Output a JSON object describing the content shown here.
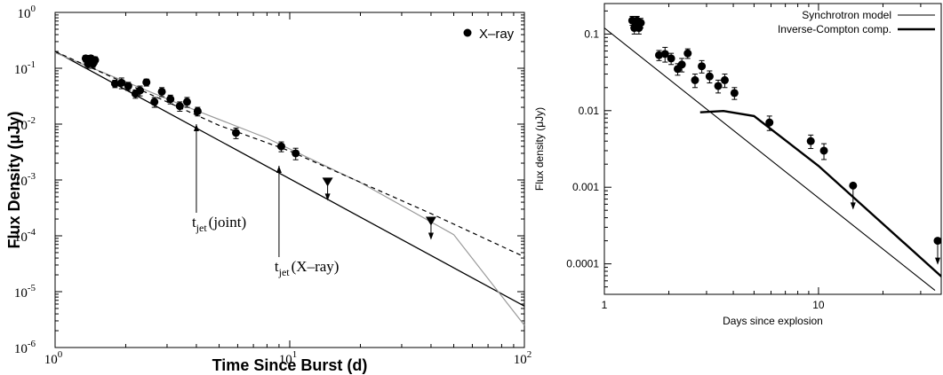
{
  "chart_data": [
    {
      "type": "scatter",
      "xlabel": "Time Since Burst (d)",
      "ylabel": "Flux Density (μJy)",
      "xscale": "log",
      "yscale": "log",
      "xlim": [
        1,
        100
      ],
      "ylim": [
        1e-06,
        1
      ],
      "x_ticks": [
        {
          "v": 1,
          "base": "10",
          "exp": "0"
        },
        {
          "v": 10,
          "base": "10",
          "exp": "1"
        },
        {
          "v": 100,
          "base": "10",
          "exp": "2"
        }
      ],
      "y_ticks": [
        {
          "v": 1,
          "base": "10",
          "exp": "0"
        },
        {
          "v": 0.1,
          "base": "10",
          "exp": "-1"
        },
        {
          "v": 0.01,
          "base": "10",
          "exp": "-2"
        },
        {
          "v": 0.001,
          "base": "10",
          "exp": "-3"
        },
        {
          "v": 0.0001,
          "base": "10",
          "exp": "-4"
        },
        {
          "v": 1e-05,
          "base": "10",
          "exp": "-5"
        },
        {
          "v": 1e-06,
          "base": "10",
          "exp": "-6"
        }
      ],
      "legend": {
        "entries": [
          "X–ray"
        ],
        "position": "top-right"
      },
      "series": [
        {
          "name": "X–ray",
          "x": [
            1.35,
            1.38,
            1.4,
            1.42,
            1.45,
            1.48,
            1.8,
            1.92,
            2.05,
            2.2,
            2.3,
            2.45,
            2.65,
            2.85,
            3.1,
            3.4,
            3.65,
            4.05,
            5.9,
            9.2,
            10.6
          ],
          "y": [
            0.15,
            0.12,
            0.13,
            0.15,
            0.12,
            0.14,
            0.053,
            0.055,
            0.048,
            0.035,
            0.04,
            0.056,
            0.025,
            0.038,
            0.028,
            0.021,
            0.025,
            0.017,
            0.007,
            0.004,
            0.003
          ],
          "yerr": [
            0.02,
            0.02,
            0.02,
            0.02,
            0.02,
            0.02,
            0.008,
            0.012,
            0.008,
            0.006,
            0.008,
            0.008,
            0.005,
            0.007,
            0.005,
            0.004,
            0.005,
            0.003,
            0.0015,
            0.0008,
            0.0007
          ]
        }
      ],
      "upper_limits": {
        "x": [
          14.5,
          40
        ],
        "y": [
          0.00095,
          0.00019
        ]
      },
      "model_lines": [
        {
          "style": "solid-black",
          "x": [
            1,
            100
          ],
          "y": [
            0.2,
            5.5e-06
          ]
        },
        {
          "style": "solid-gray",
          "x": [
            1,
            3.3,
            8,
            20,
            50,
            100
          ],
          "y": [
            0.19,
            0.024,
            0.0056,
            0.0009,
            0.000105,
            2.5e-06
          ]
        },
        {
          "style": "dashed-black",
          "x": [
            1,
            5,
            10,
            40,
            100
          ],
          "y": [
            0.2,
            0.0095,
            0.0033,
            0.00025,
            4.2e-05
          ]
        }
      ],
      "annotations": [
        {
          "main": "t",
          "sub": "jet",
          "rest": "(joint)",
          "x": 4.0
        },
        {
          "main": "t",
          "sub": "jet",
          "rest": "(X–ray)",
          "x": 9.0
        }
      ]
    },
    {
      "type": "scatter",
      "xlabel": "Days since explosion",
      "ylabel": "Flux density (μJy)",
      "xscale": "log",
      "yscale": "log",
      "xlim": [
        1,
        40
      ],
      "ylim": [
        4e-05,
        0.25
      ],
      "x_ticks": [
        {
          "v": 1,
          "label": "1"
        },
        {
          "v": 10,
          "label": "10"
        }
      ],
      "y_ticks": [
        {
          "v": 0.1,
          "label": "0.1"
        },
        {
          "v": 0.01,
          "label": "0.01"
        },
        {
          "v": 0.001,
          "label": "0.001"
        },
        {
          "v": 0.0001,
          "label": "0.0001"
        }
      ],
      "legend": {
        "entries": [
          "Synchrotron model",
          "Inverse-Compton comp."
        ],
        "position": "top-right"
      },
      "series": [
        {
          "name": "",
          "x": [
            1.35,
            1.38,
            1.4,
            1.42,
            1.45,
            1.48,
            1.8,
            1.92,
            2.05,
            2.2,
            2.3,
            2.45,
            2.65,
            2.85,
            3.1,
            3.4,
            3.65,
            4.05,
            5.9,
            9.2,
            10.6
          ],
          "y": [
            0.15,
            0.12,
            0.13,
            0.15,
            0.12,
            0.14,
            0.053,
            0.055,
            0.048,
            0.035,
            0.04,
            0.056,
            0.025,
            0.038,
            0.028,
            0.021,
            0.025,
            0.017,
            0.007,
            0.004,
            0.003
          ],
          "yerr": [
            0.02,
            0.02,
            0.02,
            0.02,
            0.02,
            0.02,
            0.008,
            0.012,
            0.008,
            0.006,
            0.008,
            0.008,
            0.005,
            0.007,
            0.005,
            0.004,
            0.005,
            0.003,
            0.0015,
            0.0008,
            0.0007
          ]
        }
      ],
      "upper_limits": {
        "x": [
          14.5,
          40
        ],
        "y": [
          0.00105,
          0.0002
        ]
      },
      "model_lines": [
        {
          "name": "Synchrotron model",
          "style": "thin",
          "x": [
            1,
            35
          ],
          "y": [
            0.12,
            4.5e-05
          ]
        },
        {
          "name": "Inverse-Compton comp.",
          "style": "thick",
          "x": [
            2.8,
            3.6,
            5.0,
            10,
            40
          ],
          "y": [
            0.0095,
            0.0099,
            0.0085,
            0.0019,
            5.8e-05
          ]
        }
      ]
    }
  ]
}
